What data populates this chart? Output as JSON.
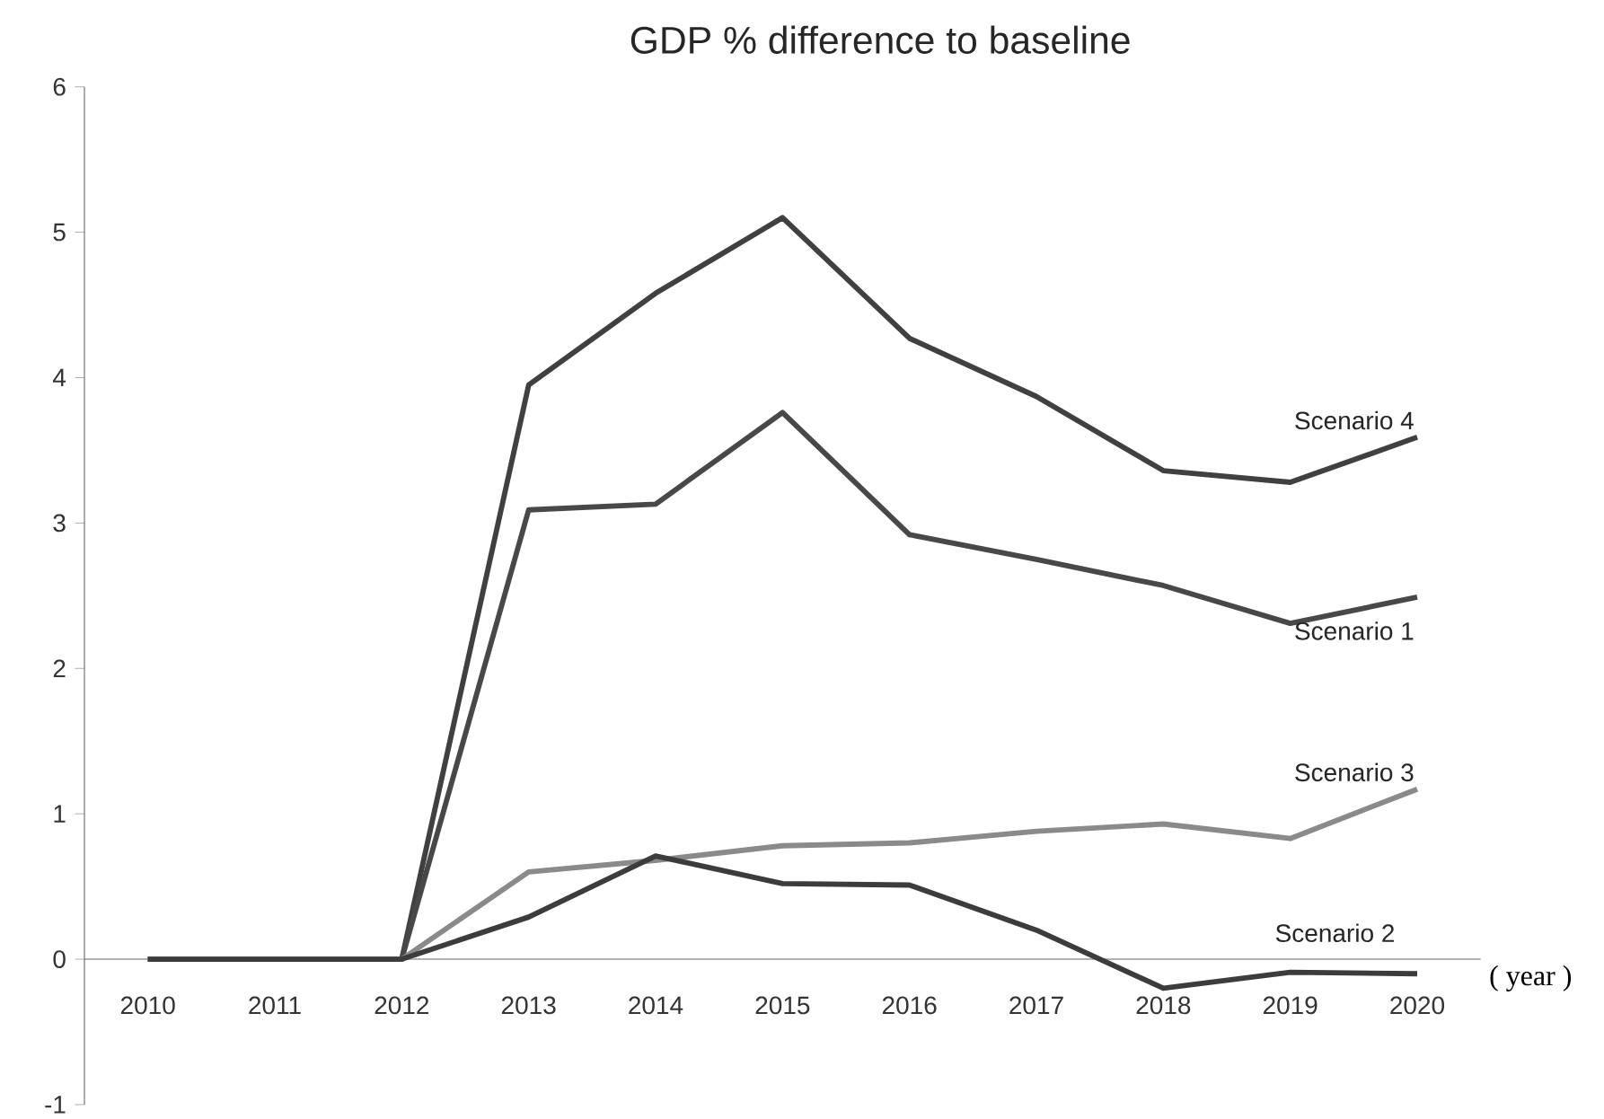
{
  "chart_data": {
    "type": "line",
    "title": "GDP % difference to baseline",
    "xlabel": "( year )",
    "categories": [
      "2010",
      "2011",
      "2012",
      "2013",
      "2014",
      "2015",
      "2016",
      "2017",
      "2018",
      "2019",
      "2020"
    ],
    "series": [
      {
        "name": "Scenario 4",
        "color": "#404040",
        "values": [
          0,
          0,
          0,
          3.95,
          4.58,
          5.1,
          4.27,
          3.87,
          3.36,
          3.28,
          3.59
        ]
      },
      {
        "name": "Scenario 1",
        "color": "#484848",
        "values": [
          0,
          0,
          0,
          3.09,
          3.13,
          3.76,
          2.92,
          2.75,
          2.57,
          2.31,
          2.49
        ]
      },
      {
        "name": "Scenario 3",
        "color": "#8a8a8a",
        "values": [
          0,
          0,
          0,
          0.6,
          0.68,
          0.78,
          0.8,
          0.88,
          0.93,
          0.83,
          1.17
        ]
      },
      {
        "name": "Scenario 2",
        "color": "#3c3c3c",
        "values": [
          0,
          0,
          0,
          0.29,
          0.71,
          0.52,
          0.51,
          0.2,
          -0.2,
          -0.09,
          -0.1
        ]
      }
    ],
    "ylim": [
      -1,
      6
    ],
    "yticks": [
      -1,
      0,
      1,
      2,
      3,
      4,
      5,
      6
    ],
    "grid": false,
    "legend": false,
    "marker": "none",
    "line_style": "solid"
  }
}
